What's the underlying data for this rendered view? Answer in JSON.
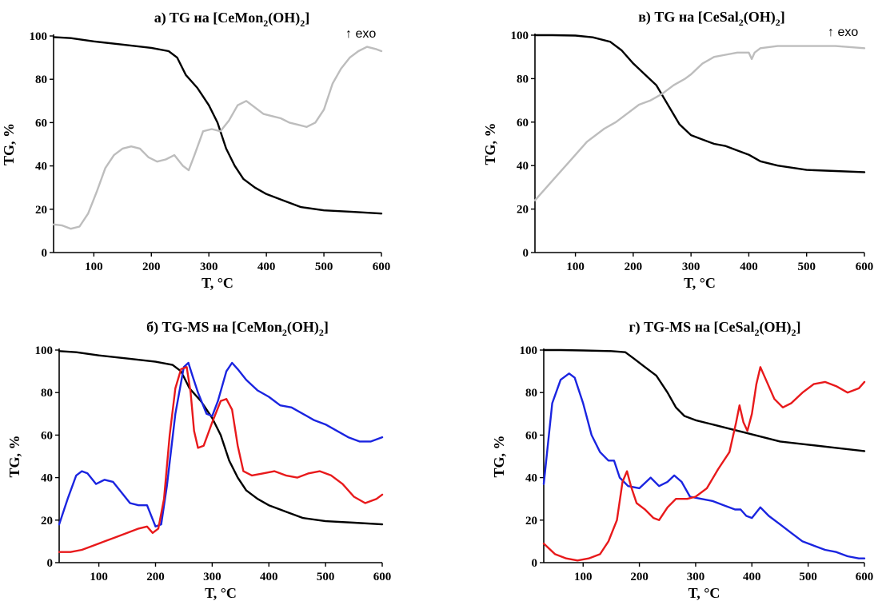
{
  "colors": {
    "black": "#000000",
    "gray": "#bdbdbd",
    "red": "#e8191b",
    "blue": "#1a24e0"
  },
  "chart_data": [
    {
      "id": "a",
      "type": "line",
      "title": "a) TG на [CeMon",
      "title_sub": "2",
      "title_mid": "(OH)",
      "title_sub2": "2",
      "title_end": "]",
      "annotation": "↑ exo",
      "xlabel": "T, °C",
      "ylabel": "TG, %",
      "xlim": [
        30,
        600
      ],
      "ylim": [
        0,
        100
      ],
      "xticks": [
        100,
        200,
        300,
        400,
        500,
        600
      ],
      "yticks": [
        0,
        20,
        40,
        60,
        80,
        100
      ],
      "series": [
        {
          "color": "black",
          "x": [
            30,
            60,
            100,
            150,
            200,
            230,
            245,
            260,
            280,
            300,
            315,
            330,
            345,
            360,
            380,
            400,
            430,
            460,
            500,
            550,
            600
          ],
          "y": [
            99.5,
            99,
            97.5,
            96,
            94.5,
            93,
            90,
            82,
            76,
            68,
            60,
            48,
            40,
            34,
            30,
            27,
            24,
            21,
            19.5,
            18.8,
            18
          ]
        },
        {
          "color": "gray",
          "x": [
            30,
            45,
            60,
            75,
            90,
            105,
            120,
            135,
            150,
            165,
            180,
            195,
            210,
            225,
            240,
            255,
            265,
            275,
            290,
            305,
            320,
            335,
            350,
            365,
            380,
            395,
            410,
            425,
            440,
            455,
            470,
            485,
            500,
            515,
            530,
            545,
            560,
            575,
            590,
            600
          ],
          "y": [
            13,
            12.5,
            11,
            12,
            18,
            28,
            39,
            45,
            48,
            49,
            48,
            44,
            42,
            43,
            45,
            40,
            38,
            45,
            56,
            57,
            56,
            61,
            68,
            70,
            67,
            64,
            63,
            62,
            60,
            59,
            58,
            60,
            66,
            78,
            85,
            90,
            93,
            95,
            94,
            93
          ]
        }
      ]
    },
    {
      "id": "b",
      "type": "line",
      "title": "в) TG на [CeSal",
      "title_sub": "2",
      "title_mid": "(OH)",
      "title_sub2": "2",
      "title_end": "]",
      "annotation": "↑ exo",
      "xlabel": "T, °C",
      "ylabel": "TG, %",
      "xlim": [
        30,
        600
      ],
      "ylim": [
        0,
        100
      ],
      "xticks": [
        100,
        200,
        300,
        400,
        500,
        600
      ],
      "yticks": [
        0,
        20,
        40,
        60,
        80,
        100
      ],
      "series": [
        {
          "color": "black",
          "x": [
            30,
            60,
            100,
            130,
            160,
            180,
            200,
            220,
            240,
            260,
            280,
            300,
            320,
            340,
            360,
            380,
            400,
            420,
            450,
            500,
            550,
            600
          ],
          "y": [
            100,
            100,
            99.8,
            99,
            97,
            93,
            87,
            82,
            77,
            68,
            59,
            54,
            52,
            50,
            49,
            47,
            45,
            42,
            40,
            38,
            37.5,
            37
          ]
        },
        {
          "color": "gray",
          "x": [
            30,
            60,
            90,
            120,
            150,
            170,
            190,
            210,
            230,
            250,
            270,
            290,
            300,
            320,
            340,
            360,
            380,
            400,
            405,
            410,
            420,
            450,
            500,
            550,
            600
          ],
          "y": [
            24,
            33,
            42,
            51,
            57,
            60,
            64,
            68,
            70,
            73,
            77,
            80,
            82,
            87,
            90,
            91,
            92,
            92,
            89,
            92,
            94,
            95,
            95,
            95,
            94
          ]
        }
      ]
    },
    {
      "id": "c",
      "type": "line",
      "title": "б) TG-MS на [CeMon",
      "title_sub": "2",
      "title_mid": "(OH)",
      "title_sub2": "2",
      "title_end": "]",
      "annotation": "",
      "xlabel": "T, °C",
      "ylabel": "TG, %",
      "xlim": [
        30,
        600
      ],
      "ylim": [
        0,
        100
      ],
      "xticks": [
        100,
        200,
        300,
        400,
        500,
        600
      ],
      "yticks": [
        0,
        20,
        40,
        60,
        80,
        100
      ],
      "series": [
        {
          "color": "black",
          "x": [
            30,
            60,
            100,
            150,
            200,
            230,
            245,
            260,
            280,
            300,
            315,
            330,
            345,
            360,
            380,
            400,
            430,
            460,
            500,
            550,
            600
          ],
          "y": [
            99.5,
            99,
            97.5,
            96,
            94.5,
            93,
            90,
            82,
            76,
            68,
            60,
            48,
            40,
            34,
            30,
            27,
            24,
            21,
            19.5,
            18.8,
            18
          ]
        },
        {
          "color": "blue",
          "x": [
            30,
            45,
            60,
            70,
            80,
            95,
            110,
            125,
            140,
            155,
            170,
            185,
            200,
            210,
            220,
            235,
            250,
            258,
            265,
            275,
            290,
            300,
            310,
            325,
            335,
            345,
            360,
            380,
            400,
            420,
            440,
            460,
            480,
            500,
            520,
            540,
            560,
            580,
            600
          ],
          "y": [
            18,
            30,
            41,
            43,
            42,
            37,
            39,
            38,
            33,
            28,
            27,
            27,
            17,
            18,
            36,
            70,
            92,
            94,
            88,
            80,
            70,
            69,
            76,
            90,
            94,
            91,
            86,
            81,
            78,
            74,
            73,
            70,
            67,
            65,
            62,
            59,
            57,
            57,
            59
          ]
        },
        {
          "color": "red",
          "x": [
            30,
            50,
            70,
            90,
            110,
            130,
            150,
            170,
            185,
            195,
            205,
            215,
            225,
            235,
            245,
            255,
            262,
            268,
            275,
            285,
            300,
            315,
            325,
            335,
            345,
            355,
            370,
            390,
            410,
            430,
            450,
            470,
            490,
            510,
            530,
            550,
            570,
            590,
            600
          ],
          "y": [
            5,
            5,
            6,
            8,
            10,
            12,
            14,
            16,
            17,
            14,
            16,
            30,
            60,
            82,
            91,
            92,
            80,
            62,
            54,
            55,
            66,
            76,
            77,
            72,
            55,
            43,
            41,
            42,
            43,
            41,
            40,
            42,
            43,
            41,
            37,
            31,
            28,
            30,
            32
          ]
        }
      ]
    },
    {
      "id": "d",
      "type": "line",
      "title": "г) TG-MS на [CeSal",
      "title_sub": "2",
      "title_mid": "(OH)",
      "title_sub2": "2",
      "title_end": "]",
      "annotation": "",
      "xlabel": "T, °C",
      "ylabel": "TG, %",
      "xlim": [
        30,
        600
      ],
      "ylim": [
        0,
        100
      ],
      "xticks": [
        100,
        200,
        300,
        400,
        500,
        600
      ],
      "yticks": [
        0,
        20,
        40,
        60,
        80,
        100
      ],
      "series": [
        {
          "color": "black",
          "x": [
            30,
            60,
            100,
            150,
            175,
            190,
            210,
            230,
            250,
            265,
            280,
            300,
            330,
            360,
            390,
            420,
            450,
            500,
            550,
            600
          ],
          "y": [
            100,
            100,
            99.8,
            99.5,
            99,
            96,
            92,
            88,
            80,
            73,
            69,
            67,
            65,
            63,
            61,
            59,
            57,
            55.5,
            54,
            52.5
          ]
        },
        {
          "color": "blue",
          "x": [
            30,
            45,
            60,
            75,
            85,
            100,
            115,
            130,
            145,
            155,
            165,
            180,
            200,
            220,
            235,
            250,
            262,
            275,
            290,
            310,
            330,
            350,
            370,
            380,
            390,
            400,
            415,
            430,
            450,
            470,
            490,
            510,
            530,
            550,
            570,
            590,
            600
          ],
          "y": [
            37,
            75,
            86,
            89,
            87,
            75,
            60,
            52,
            48,
            48,
            40,
            36,
            35,
            40,
            36,
            38,
            41,
            38,
            31,
            30,
            29,
            27,
            25,
            25,
            22,
            21,
            26,
            22,
            18,
            14,
            10,
            8,
            6,
            5,
            3,
            2,
            2
          ]
        },
        {
          "color": "red",
          "x": [
            30,
            50,
            70,
            90,
            110,
            130,
            145,
            160,
            170,
            178,
            185,
            195,
            210,
            225,
            235,
            250,
            265,
            285,
            300,
            320,
            340,
            360,
            372,
            378,
            385,
            392,
            400,
            408,
            415,
            425,
            440,
            455,
            470,
            490,
            510,
            530,
            550,
            570,
            590,
            600
          ],
          "y": [
            9,
            4,
            2,
            1,
            2,
            4,
            10,
            20,
            38,
            43,
            36,
            28,
            25,
            21,
            20,
            26,
            30,
            30,
            31,
            35,
            44,
            52,
            66,
            74,
            66,
            62,
            70,
            84,
            92,
            86,
            77,
            73,
            75,
            80,
            84,
            85,
            83,
            80,
            82,
            85
          ]
        }
      ]
    }
  ]
}
